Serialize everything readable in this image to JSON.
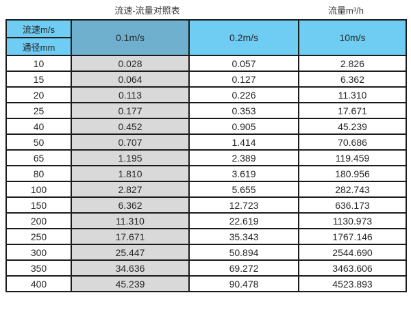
{
  "titles": {
    "left": "流速-流量对照表",
    "right": "流量m³/h"
  },
  "chart_data": {
    "type": "table",
    "title": "流速-流量对照表",
    "unit_label": "流量m³/h",
    "corner": {
      "top": "流速m/s",
      "bottom": "通径mm"
    },
    "velocity_columns": [
      "0.1m/s",
      "0.2m/s",
      "10m/s"
    ],
    "diameters_mm": [
      "10",
      "15",
      "20",
      "25",
      "40",
      "50",
      "65",
      "80",
      "100",
      "150",
      "200",
      "250",
      "300",
      "350",
      "400"
    ],
    "series": [
      {
        "name": "0.1m/s",
        "values": [
          "0.028",
          "0.064",
          "0.113",
          "0.177",
          "0.452",
          "0.707",
          "1.195",
          "1.810",
          "2.827",
          "6.362",
          "11.310",
          "17.671",
          "25.447",
          "34.636",
          "45.239"
        ]
      },
      {
        "name": "0.2m/s",
        "values": [
          "0.057",
          "0.127",
          "0.226",
          "0.353",
          "0.905",
          "1.414",
          "2.389",
          "3.619",
          "5.655",
          "12.723",
          "22.619",
          "35.343",
          "50.894",
          "69.272",
          "90.478"
        ]
      },
      {
        "name": "10m/s",
        "values": [
          "2.826",
          "6.362",
          "11.310",
          "17.671",
          "45.239",
          "70.686",
          "119.459",
          "180.956",
          "282.743",
          "636.173",
          "1130.973",
          "1767.146",
          "2544.690",
          "3463.606",
          "4523.893"
        ]
      }
    ],
    "layout": {
      "grid": true,
      "header_rows": 2,
      "shaded_column": "0.1m/s"
    }
  },
  "colors": {
    "header_blue": "#6FCDF3",
    "header_blue_dark": "#6FB0CE",
    "gray_column": "#D9D9D9",
    "border": "#1B1B1B",
    "text": "#262626"
  }
}
